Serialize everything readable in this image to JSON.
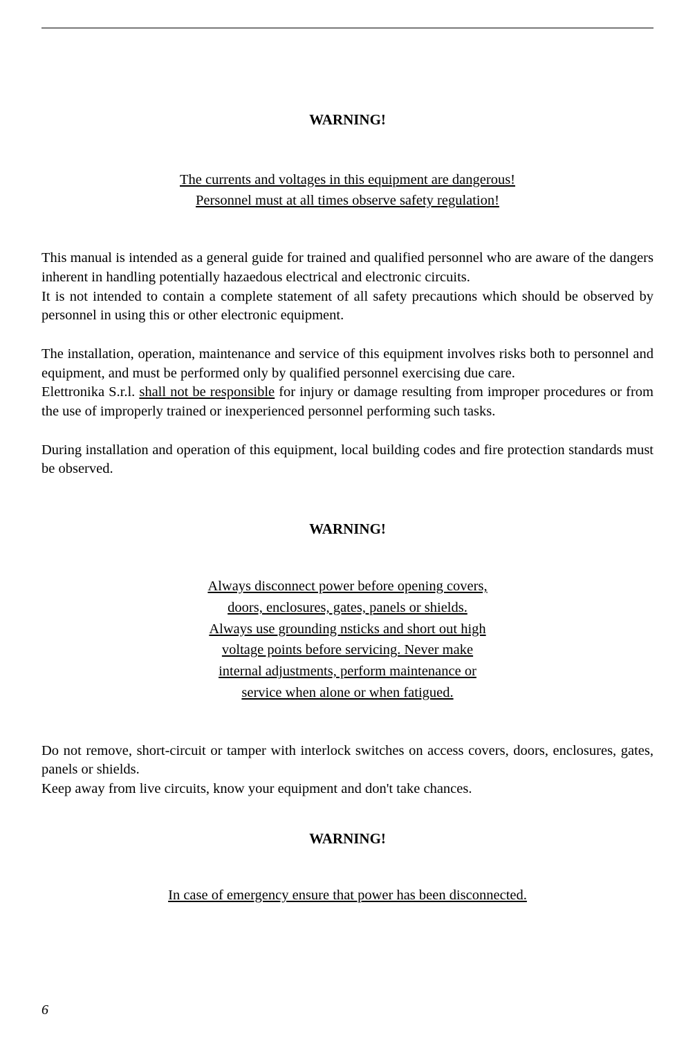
{
  "warnings": {
    "heading": "WARNING!"
  },
  "section1": {
    "line1": "The currents and voltages in this equipment are dangerous!",
    "line2": "Personnel must at all times observe safety regulation!"
  },
  "para1": "This manual is intended as a general guide for trained and qualified personnel who are aware of the dangers inherent in handling potentially hazaedous electrical and electronic circuits.",
  "para2": "It is not intended to contain a complete statement of all safety precautions which should be observed by personnel in using this or other electronic equipment.",
  "para3": "The installation, operation, maintenance and service of this equipment involves risks both to personnel and equipment, and must be performed only by qualified personnel exercising due care.",
  "para4_pre": "Elettronika S.r.l. ",
  "para4_underline": "shall not be responsible",
  "para4_post": " for injury or damage resulting from improper procedures or from the use of improperly trained or inexperienced personnel performing such tasks.",
  "para5": "During installation and operation of this equipment, local building codes and fire protection standards must be observed.",
  "section2": {
    "l1": "Always disconnect power before opening covers,",
    "l2": "doors, enclosures, gates, panels or shields.",
    "l3": "Always use grounding nsticks and short out high",
    "l4": "voltage points before servicing. Never make",
    "l5": "internal adjustments, perform maintenance or",
    "l6": "service when alone or when fatigued."
  },
  "para6": "Do not remove, short-circuit or tamper with interlock switches on access covers, doors, enclosures, gates, panels or shields.",
  "para7": "Keep away from live circuits, know your equipment and don't take chances.",
  "section3": {
    "line1": "In case of emergency ensure that power has been disconnected."
  },
  "pageNumber": "6"
}
